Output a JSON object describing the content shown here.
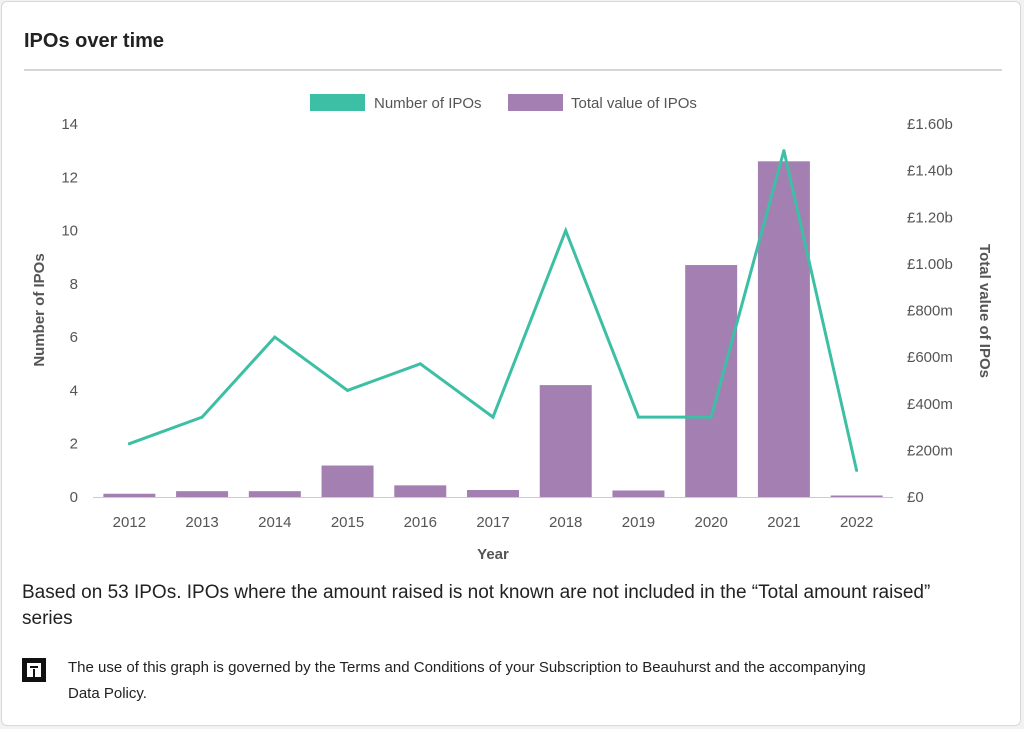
{
  "header": {
    "title": "IPOs over time"
  },
  "colors": {
    "line": "#3dbfa5",
    "bar": "#a47fb2",
    "axis_text": "#555555",
    "baseline": "#cccccc"
  },
  "chart_data": {
    "type": "bar+line",
    "categories": [
      "2012",
      "2013",
      "2014",
      "2015",
      "2016",
      "2017",
      "2018",
      "2019",
      "2020",
      "2021",
      "2022"
    ],
    "series": [
      {
        "name": "Number of IPOs",
        "type": "line",
        "axis": "left",
        "values": [
          2,
          3,
          6,
          4,
          5,
          3,
          10,
          3,
          3,
          13,
          1
        ]
      },
      {
        "name": "Total value of IPOs",
        "type": "bar",
        "axis": "right",
        "values": [
          14000000,
          25000000,
          25000000,
          135000000,
          50000000,
          30000000,
          480000000,
          28000000,
          995000000,
          1440000000,
          5000000
        ]
      }
    ],
    "xlabel": "Year",
    "ylabel": "Number of IPOs",
    "y2label": "Total value of IPOs",
    "ylim": [
      0,
      14
    ],
    "y_ticks": [
      "0",
      "2",
      "4",
      "6",
      "8",
      "10",
      "12",
      "14"
    ],
    "y2lim": [
      0,
      1600000000
    ],
    "y2_ticks": [
      "£0",
      "£200m",
      "£400m",
      "£600m",
      "£800m",
      "£1.00b",
      "£1.20b",
      "£1.40b",
      "£1.60b"
    ],
    "legend_position": "top-center",
    "grid": false
  },
  "footer": {
    "note": "Based on 53 IPOs. IPOs where the amount raised is not known are not included in the “Total amount raised” series",
    "terms": "The use of this graph is governed by the Terms and Conditions of your Subscription to Beauhurst and the accompanying Data Policy."
  }
}
